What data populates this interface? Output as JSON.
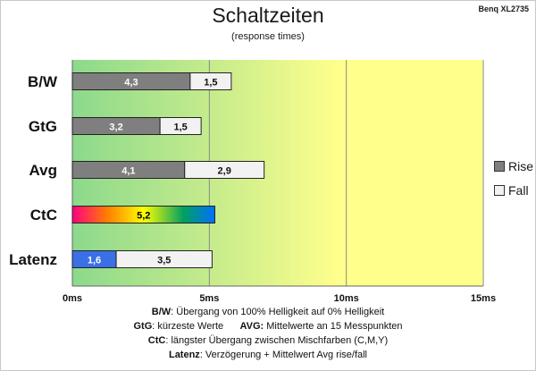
{
  "corner_label": "Benq XL2735",
  "legend": {
    "rise": "Rise",
    "fall": "Fall",
    "rise_color": "#7f7f7f",
    "fall_color": "#f2f2f2"
  },
  "footnotes": {
    "bw_term": "B/W",
    "bw_text": ":  Übergang von 100% Helligkeit auf 0% Helligkeit",
    "gtg_term": "GtG",
    "gtg_text": ": kürzeste  Werte",
    "avg_term": "AVG:",
    "avg_text": " Mittelwerte  an 15 Messpunkten",
    "ctc_term": "CtC",
    "ctc_text": ": längster Übergang  zwischen Mischfarben  (C,M,Y)",
    "lat_term": "Latenz",
    "lat_text": ": Verzögerung  + Mittelwert Avg rise/fall"
  },
  "chart_data": {
    "type": "bar",
    "orientation": "horizontal",
    "stacked": true,
    "title": "Schaltzeiten",
    "subtitle": "(response times)",
    "categories": [
      "B/W",
      "GtG",
      "Avg",
      "CtC",
      "Latenz"
    ],
    "series": [
      {
        "name": "Rise",
        "values": [
          4.3,
          3.2,
          4.1,
          5.2,
          1.6
        ],
        "labels": [
          "4,3",
          "3,2",
          "4,1",
          "5,2",
          "1,6"
        ]
      },
      {
        "name": "Fall",
        "values": [
          1.5,
          1.5,
          2.9,
          0,
          3.5
        ],
        "labels": [
          "1,5",
          "1,5",
          "2,9",
          "",
          "3,5"
        ]
      }
    ],
    "xlim": [
      0,
      15
    ],
    "xticks": [
      0,
      5,
      10,
      15
    ],
    "xtick_labels": [
      "0ms",
      "5ms",
      "10ms",
      "15ms"
    ],
    "grid": true,
    "legend_position": "right",
    "background_gradient": [
      "#8cd98c",
      "#c8ec8c",
      "#ffff8c"
    ],
    "ctc_bar_gradient": [
      "#ff0080",
      "#ff8000",
      "#ffff00",
      "#00a060",
      "#0070ff"
    ],
    "latenz_rise_color": "#3b6fe6"
  }
}
